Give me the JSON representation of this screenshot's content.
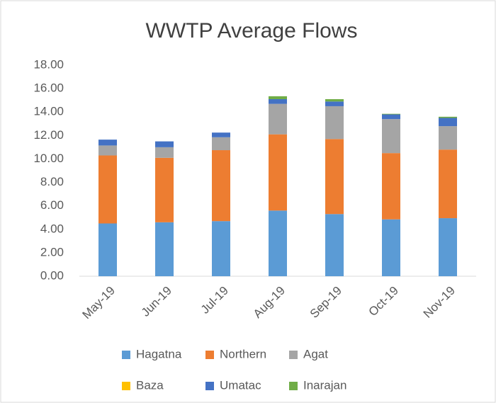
{
  "chart_data": {
    "type": "stacked_bar",
    "title": "WWTP Average Flows",
    "categories": [
      "May-19",
      "Jun-19",
      "Jul-19",
      "Aug-19",
      "Sep-19",
      "Oct-19",
      "Nov-19"
    ],
    "series": [
      {
        "name": "Hagatna",
        "color": "#5b9bd5",
        "values": [
          4.5,
          4.6,
          4.7,
          5.6,
          5.3,
          4.85,
          4.95
        ]
      },
      {
        "name": "Northern",
        "color": "#ed7d31",
        "values": [
          5.8,
          5.5,
          6.05,
          6.5,
          6.4,
          5.65,
          5.85
        ]
      },
      {
        "name": "Agat",
        "color": "#a5a5a5",
        "values": [
          0.85,
          0.9,
          1.1,
          2.6,
          2.8,
          2.9,
          2.0
        ]
      },
      {
        "name": "Baza",
        "color": "#ffc000",
        "values": [
          0,
          0,
          0,
          0,
          0,
          0,
          0
        ]
      },
      {
        "name": "Umatac",
        "color": "#4472c4",
        "values": [
          0.5,
          0.5,
          0.4,
          0.4,
          0.4,
          0.4,
          0.7
        ]
      },
      {
        "name": "Inarajan",
        "color": "#70ad47",
        "values": [
          0,
          0,
          0,
          0.25,
          0.2,
          0.05,
          0.1
        ]
      }
    ],
    "ylim": [
      0,
      18
    ],
    "yticks": [
      {
        "value": 0,
        "label": "0.00"
      },
      {
        "value": 2,
        "label": "2.00"
      },
      {
        "value": 4,
        "label": "4.00"
      },
      {
        "value": 6,
        "label": "6.00"
      },
      {
        "value": 8,
        "label": "8.00"
      },
      {
        "value": 10,
        "label": "10.00"
      },
      {
        "value": 12,
        "label": "12.00"
      },
      {
        "value": 14,
        "label": "14.00"
      },
      {
        "value": 16,
        "label": "16.00"
      },
      {
        "value": 18,
        "label": "18.00"
      }
    ],
    "grid": false
  }
}
